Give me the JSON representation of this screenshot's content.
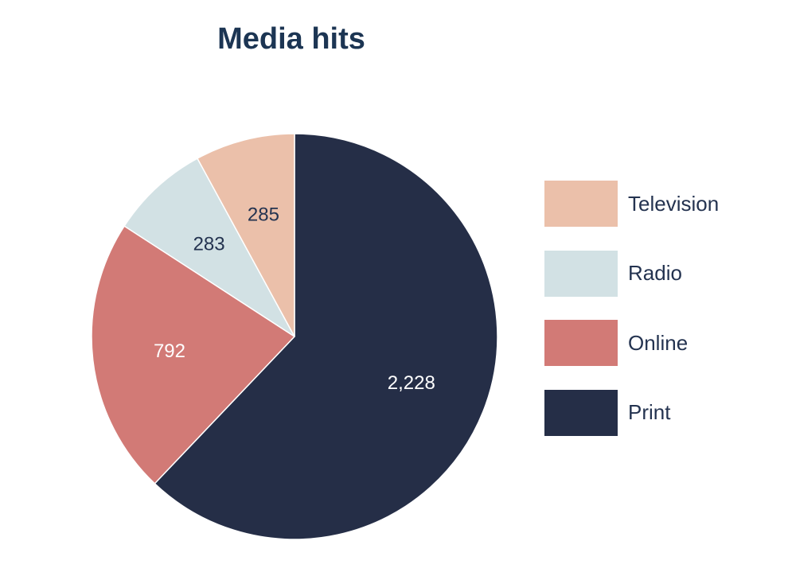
{
  "chart_data": {
    "type": "pie",
    "title": "Media hits",
    "slices": [
      {
        "label": "Print",
        "value": 2228,
        "display": "2,228",
        "color": "#252e47",
        "label_color": "#ffffff"
      },
      {
        "label": "Online",
        "value": 792,
        "display": "792",
        "color": "#d27a76",
        "label_color": "#ffffff"
      },
      {
        "label": "Radio",
        "value": 283,
        "display": "283",
        "color": "#d2e1e4",
        "label_color": "#243350"
      },
      {
        "label": "Television",
        "value": 285,
        "display": "285",
        "color": "#ebc0aa",
        "label_color": "#243350"
      }
    ],
    "legend": {
      "placement": "right",
      "items": [
        {
          "label": "Television",
          "color": "#ebc0aa"
        },
        {
          "label": "Radio",
          "color": "#d2e1e4"
        },
        {
          "label": "Online",
          "color": "#d27a76"
        },
        {
          "label": "Print",
          "color": "#252e47"
        }
      ]
    }
  }
}
